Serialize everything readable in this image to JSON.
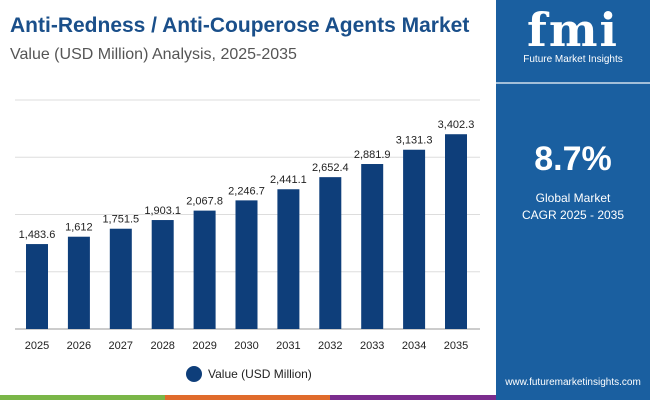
{
  "header": {
    "title": "Anti-Redness / Anti-Couperose Agents Market",
    "subtitle": "Value (USD Million) Analysis, 2025-2035"
  },
  "sidebar": {
    "logo_text": "fmi",
    "logo_caption": "Future Market Insights",
    "cagr_value": "8.7%",
    "cagr_label_1": "Global Market",
    "cagr_label_2": "CAGR 2025 - 2035",
    "website": "www.futuremarketinsights.com"
  },
  "colors": {
    "bar": "#0e3e7a",
    "panel": "#1a5fa0",
    "stripe_green": "#7ab648",
    "stripe_orange": "#e06b2c",
    "stripe_purple": "#7b2d8e"
  },
  "chart_data": {
    "type": "bar",
    "categories": [
      "2025",
      "2026",
      "2027",
      "2028",
      "2029",
      "2030",
      "2031",
      "2032",
      "2033",
      "2034",
      "2035"
    ],
    "series": [
      {
        "name": "Value (USD Million)",
        "values": [
          1483.6,
          1612,
          1751.5,
          1903.1,
          2067.8,
          2246.7,
          2441.1,
          2652.4,
          2881.9,
          3131.3,
          3402.3
        ]
      }
    ],
    "labels": [
      "1,483.6",
      "1,612",
      "1,751.5",
      "1,903.1",
      "2,067.8",
      "2,246.7",
      "2,441.1",
      "2,652.4",
      "2,881.9",
      "3,131.3",
      "3,402.3"
    ],
    "ylim": [
      0,
      4000
    ],
    "grid": true,
    "legend": "bottom",
    "title": "Anti-Redness / Anti-Couperose Agents Market"
  }
}
